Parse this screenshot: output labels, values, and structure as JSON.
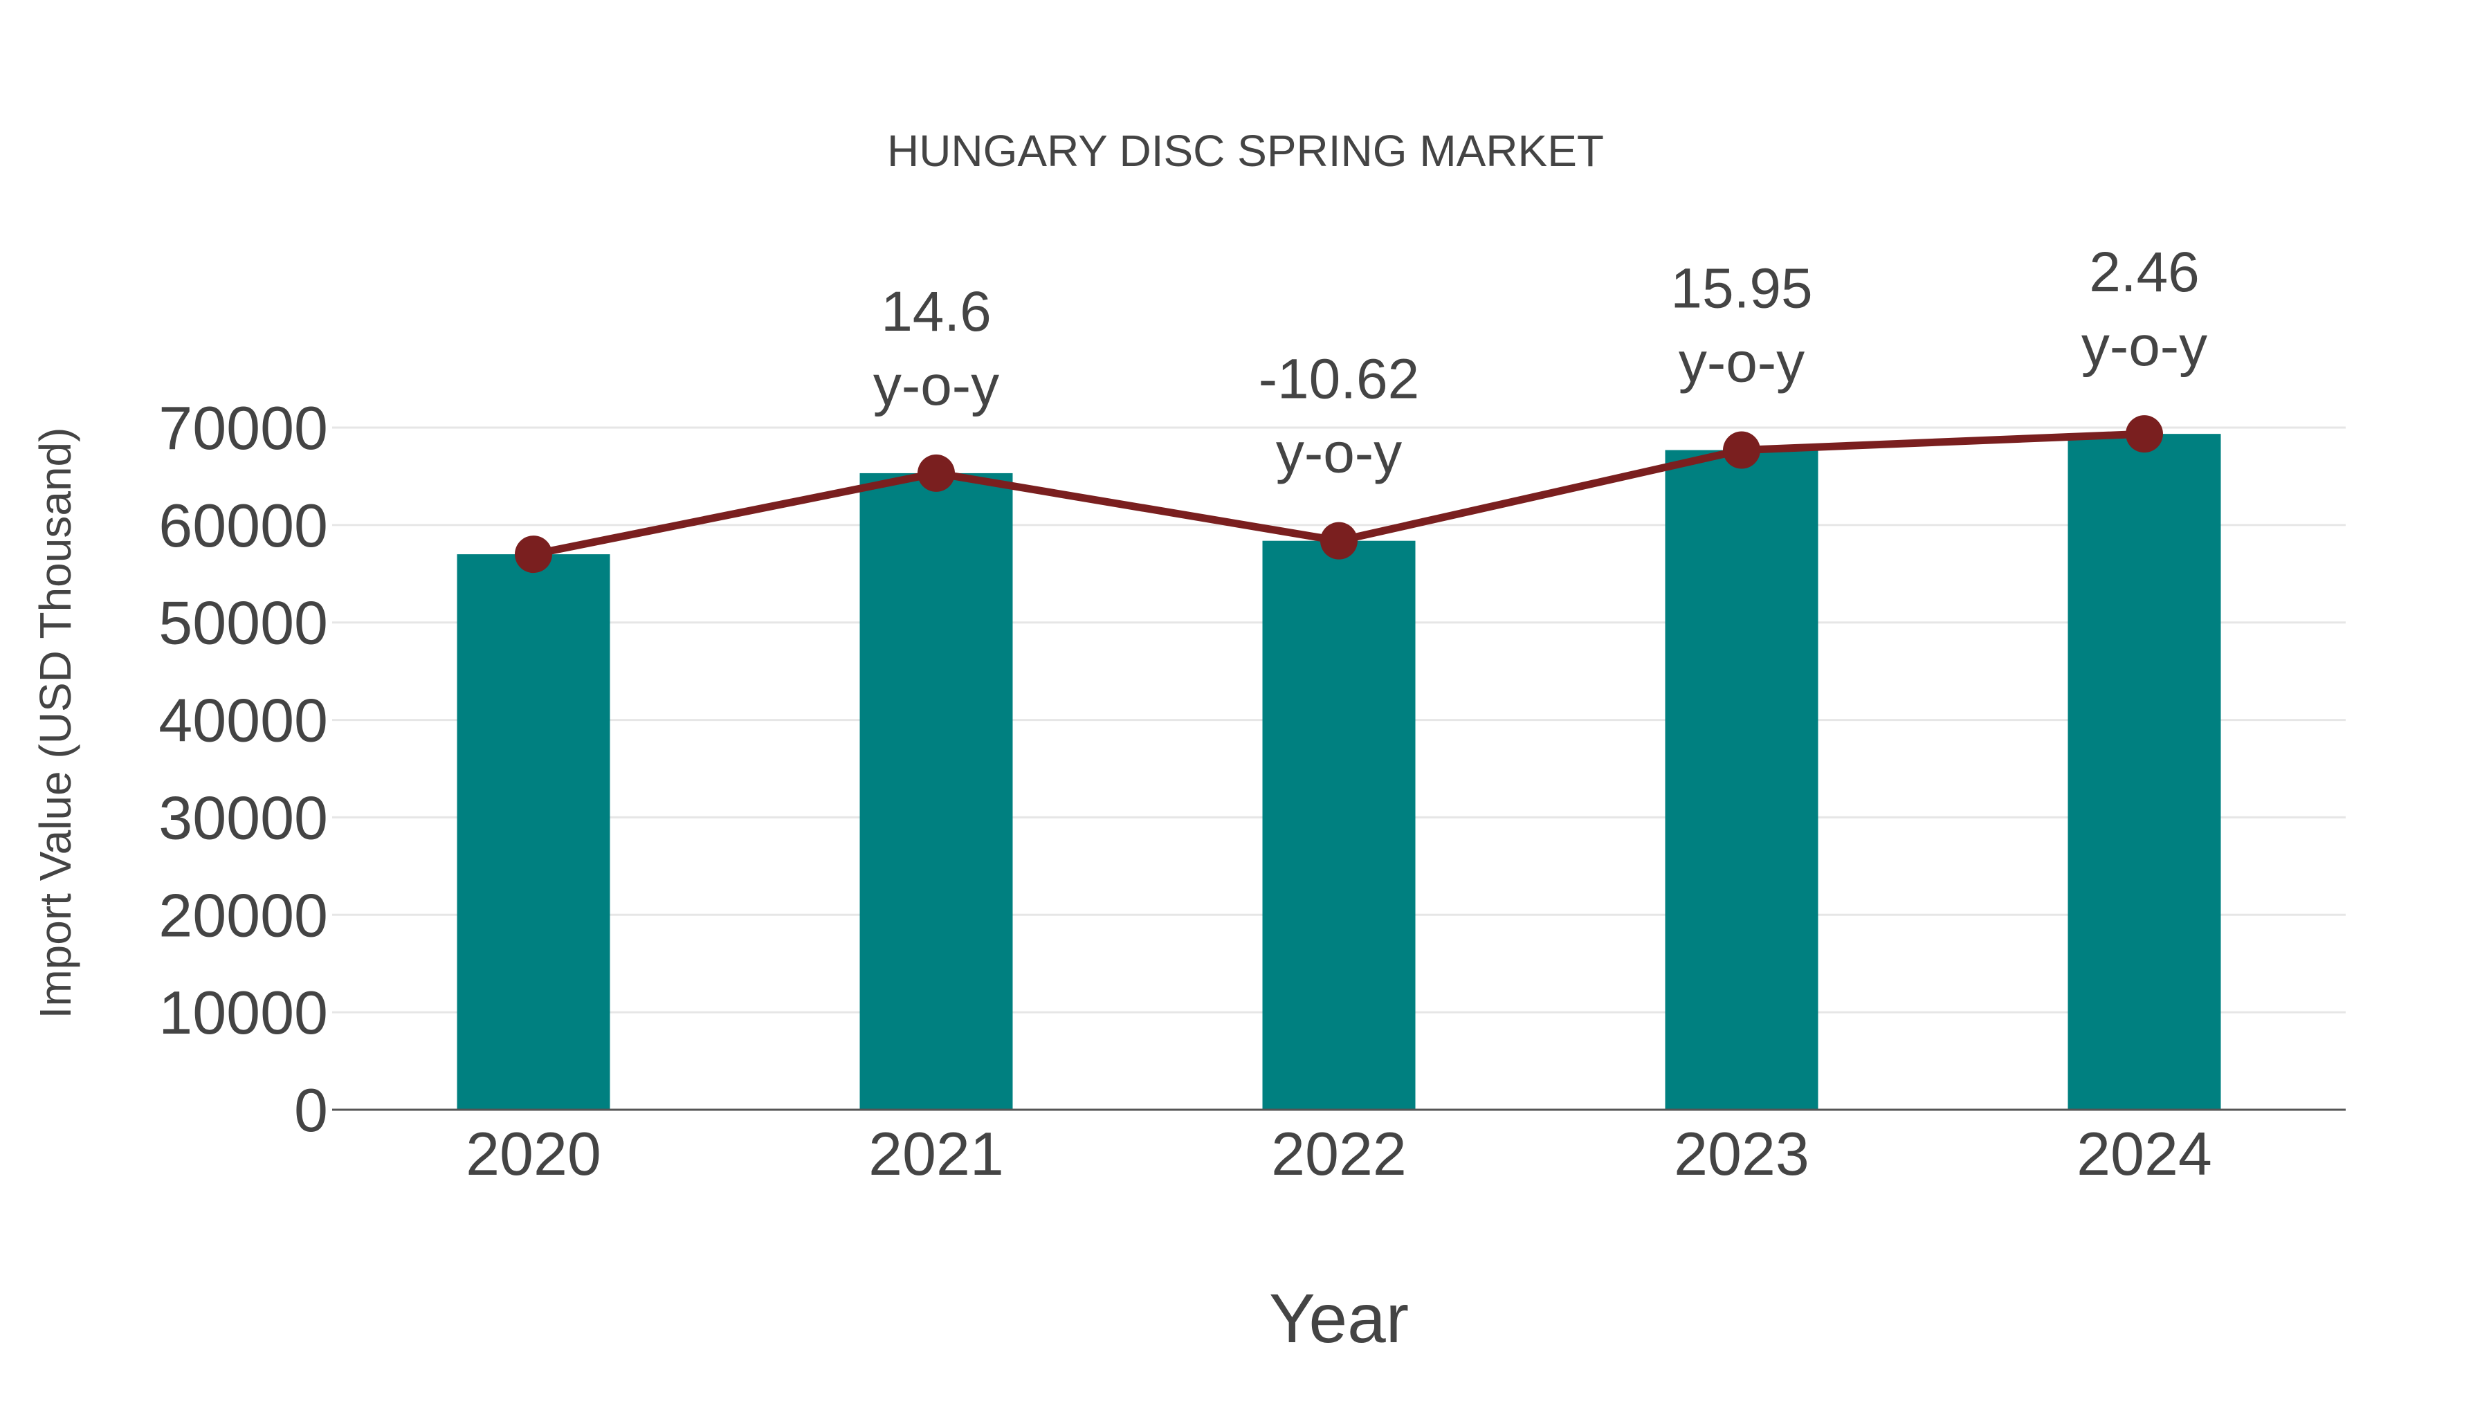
{
  "chart_data": {
    "type": "bar",
    "title": "HUNGARY DISC SPRING MARKET",
    "xlabel": "Year",
    "ylabel": "Import Value (USD Thousand)",
    "categories": [
      "2020",
      "2021",
      "2022",
      "2023",
      "2024"
    ],
    "series": [
      {
        "name": "Import Value",
        "type": "bar",
        "color": "#008080",
        "values": [
          57000,
          65320,
          58380,
          67690,
          69350
        ]
      },
      {
        "name": "Trend",
        "type": "line",
        "color": "#7a1f1f",
        "values": [
          57000,
          65320,
          58380,
          67690,
          69350
        ]
      }
    ],
    "annotations": [
      {
        "category": "2020",
        "value": "",
        "suffix": ""
      },
      {
        "category": "2021",
        "value": "14.6",
        "suffix": "y-o-y"
      },
      {
        "category": "2022",
        "value": "-10.62",
        "suffix": "y-o-y"
      },
      {
        "category": "2023",
        "value": "15.95",
        "suffix": "y-o-y"
      },
      {
        "category": "2024",
        "value": "2.46",
        "suffix": "y-o-y"
      }
    ],
    "yticks": [
      0,
      10000,
      20000,
      30000,
      40000,
      50000,
      60000,
      70000
    ],
    "ylim": [
      0,
      70000
    ],
    "grid": true,
    "legend": "none"
  },
  "colors": {
    "bar": "#008080",
    "line": "#7a1f1f",
    "text": "#444444",
    "grid": "#e6e6e6",
    "axis": "#555555"
  }
}
